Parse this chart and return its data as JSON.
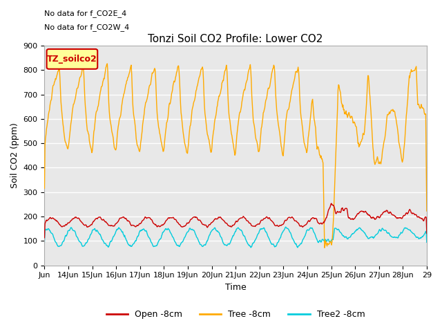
{
  "title": "Tonzi Soil CO2 Profile: Lower CO2",
  "ylabel": "Soil CO2 (ppm)",
  "xlabel": "Time",
  "top_annotations": [
    "No data for f_CO2E_4",
    "No data for f_CO2W_4"
  ],
  "legend_box_label": "TZ_soilco2",
  "ylim": [
    0,
    900
  ],
  "background_color": "#ffffff",
  "plot_bg_color": "#e8e8e8",
  "x_tick_labels": [
    "Jun",
    "14Jun",
    "15Jun",
    "16Jun",
    "17Jun",
    "18Jun",
    "19Jun",
    "20Jun",
    "21Jun",
    "22Jun",
    "23Jun",
    "24Jun",
    "25Jun",
    "26Jun",
    "27Jun",
    "28Jun",
    "29"
  ],
  "line_colors": {
    "open": "#cc0000",
    "tree": "#ffaa00",
    "tree2": "#00ccdd"
  },
  "legend_labels": [
    "Open -8cm",
    "Tree -8cm",
    "Tree2 -8cm"
  ],
  "title_fontsize": 11,
  "axis_fontsize": 9,
  "tick_fontsize": 8,
  "annot_fontsize": 8
}
